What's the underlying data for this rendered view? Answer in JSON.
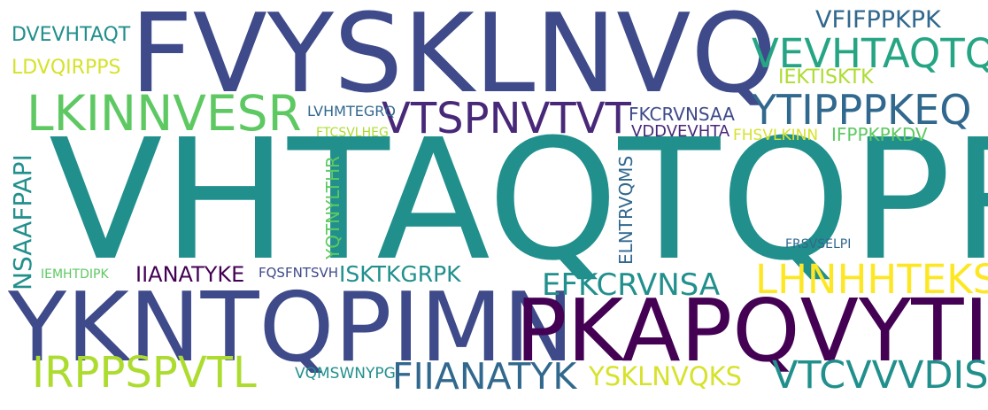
{
  "palette": {
    "teal": "#21908d",
    "indigo": "#3e4a89",
    "green": "#5ec962",
    "lime": "#addc30",
    "yellow": "#fde725",
    "purple": "#440154",
    "darkpurple": "#482878",
    "blue": "#31688e",
    "seagreen": "#26a585"
  },
  "words": [
    {
      "id": "w1",
      "text": "VHTAQTQPR"
    },
    {
      "id": "w2",
      "text": "FVYSKLNVQ"
    },
    {
      "id": "w3",
      "text": "YKNTQPIMN"
    },
    {
      "id": "w4",
      "text": "PKAPQVYTI"
    },
    {
      "id": "w5",
      "text": "LKINNVESR"
    },
    {
      "id": "w6",
      "text": "VTSPNVTVT"
    },
    {
      "id": "w7",
      "text": "VEVHTAQTQ"
    },
    {
      "id": "w8",
      "text": "YTIPPPKEQ"
    },
    {
      "id": "w9",
      "text": "VFIFPPKPK"
    },
    {
      "id": "w10",
      "text": "IEKTISKTK"
    },
    {
      "id": "w11",
      "text": "DVEVHTAQT"
    },
    {
      "id": "w12",
      "text": "LDVQIRPPS"
    },
    {
      "id": "w13",
      "text": "LVHMTEGRQ"
    },
    {
      "id": "w14",
      "text": "FTCSVLHEG"
    },
    {
      "id": "w15",
      "text": "FKCRVNSAA"
    },
    {
      "id": "w16",
      "text": "VDDVEVHTA"
    },
    {
      "id": "w17",
      "text": "FHSVLKINN"
    },
    {
      "id": "w18",
      "text": "IFPPKPKDV"
    },
    {
      "id": "w19",
      "text": "NSAAFPAPI"
    },
    {
      "id": "w20",
      "text": "YQTNYLTHR"
    },
    {
      "id": "w21",
      "text": "ELNTRVQMS"
    },
    {
      "id": "w22",
      "text": "FRSVSELPI"
    },
    {
      "id": "w23",
      "text": "IEMHTDIPK"
    },
    {
      "id": "w24",
      "text": "IIANATYKE"
    },
    {
      "id": "w25",
      "text": "FQSFNTSVH"
    },
    {
      "id": "w26",
      "text": "ISKTKGRPK"
    },
    {
      "id": "w27",
      "text": "EFKCRVNSA"
    },
    {
      "id": "w28",
      "text": "LHNHHTEKS"
    },
    {
      "id": "w29",
      "text": "IRPPSPVTL"
    },
    {
      "id": "w30",
      "text": "VQMSWNYPG"
    },
    {
      "id": "w31",
      "text": "FIIANATYK"
    },
    {
      "id": "w32",
      "text": "YSKLNVQKS"
    },
    {
      "id": "w33",
      "text": "VTCVVVDIS"
    }
  ]
}
